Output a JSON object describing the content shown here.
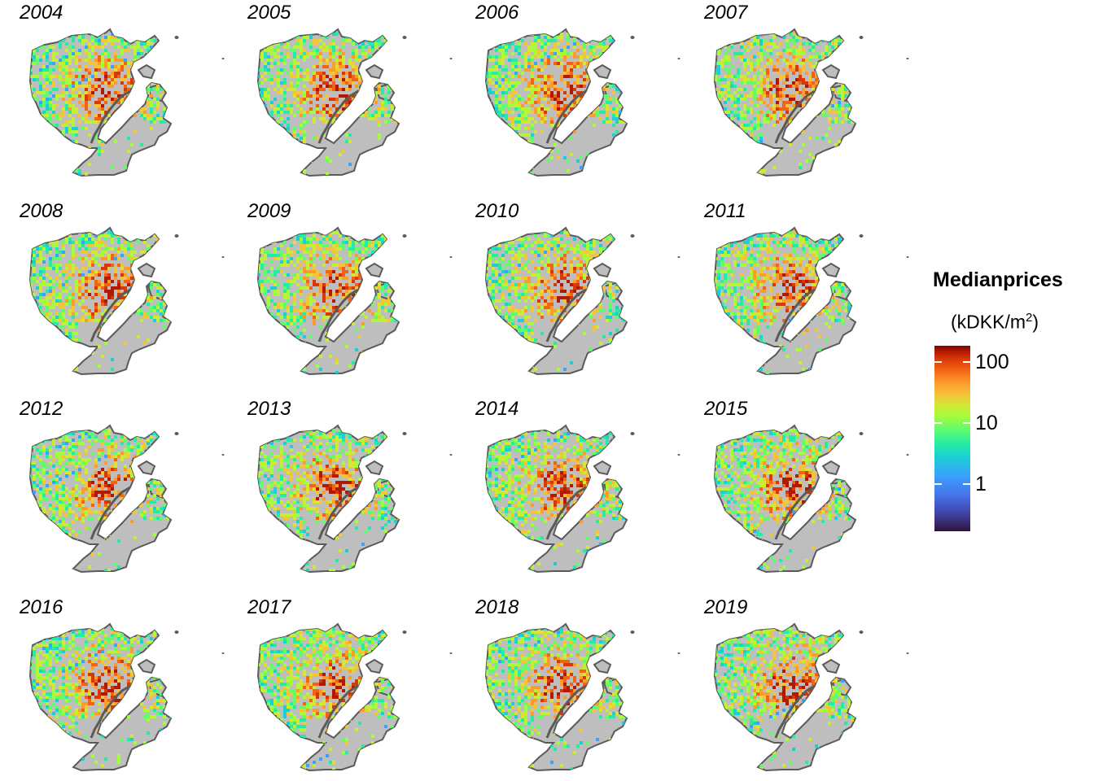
{
  "panels": [
    {
      "year": "2004",
      "has_island": true
    },
    {
      "year": "2005",
      "has_island": true
    },
    {
      "year": "2006",
      "has_island": true
    },
    {
      "year": "2007",
      "has_island": true
    },
    {
      "year": "2008",
      "has_island": true
    },
    {
      "year": "2009",
      "has_island": true
    },
    {
      "year": "2010",
      "has_island": true
    },
    {
      "year": "2011",
      "has_island": true
    },
    {
      "year": "2012",
      "has_island": true
    },
    {
      "year": "2013",
      "has_island": true
    },
    {
      "year": "2014",
      "has_island": true
    },
    {
      "year": "2015",
      "has_island": true
    },
    {
      "year": "2016",
      "has_island": true
    },
    {
      "year": "2017",
      "has_island": true
    },
    {
      "year": "2018",
      "has_island": true
    },
    {
      "year": "2019",
      "has_island": true
    }
  ],
  "legend": {
    "title": "Medianprices",
    "subtitle_prefix": "(kDKK/m",
    "subtitle_sup": "2",
    "subtitle_suffix": ")",
    "scale": "log",
    "ticks": [
      {
        "label": "100",
        "value": 100
      },
      {
        "label": "10",
        "value": 10
      },
      {
        "label": "1",
        "value": 1
      }
    ],
    "palette": "turbo"
  },
  "colors": {
    "land": "#bebebe",
    "border": "#5a5a5a",
    "background": "#ffffff"
  }
}
